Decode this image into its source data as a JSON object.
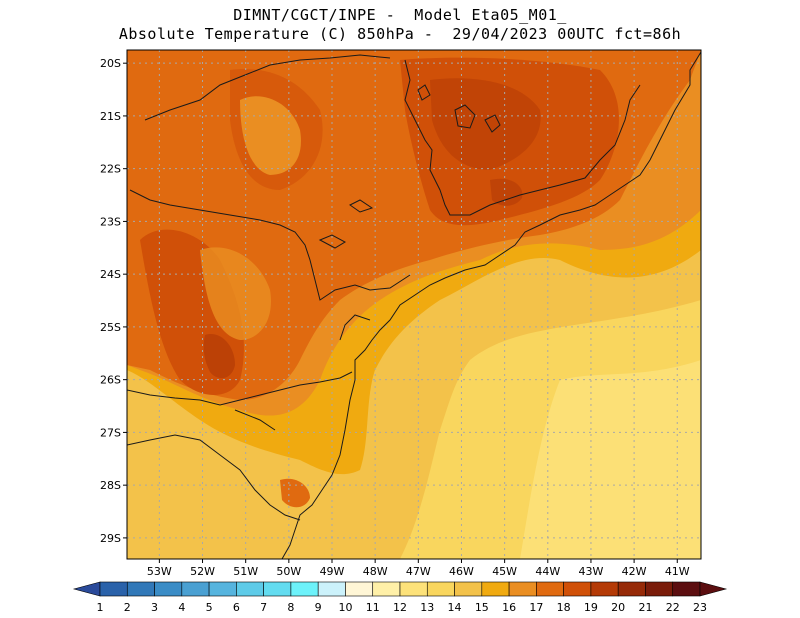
{
  "header": {
    "line1": "DIMNT/CGCT/INPE -  Model Eta05_M01_",
    "line2": "Absolute Temperature (C) 850hPa -  29/04/2023 00UTC fct=86h"
  },
  "map": {
    "lat_labels": [
      "20S",
      "21S",
      "22S",
      "23S",
      "24S",
      "25S",
      "26S",
      "27S",
      "28S",
      "29S"
    ],
    "lon_labels": [
      "53W",
      "52W",
      "51W",
      "50W",
      "49W",
      "48W",
      "47W",
      "46W",
      "45W",
      "44W",
      "43W",
      "42W",
      "41W"
    ],
    "extent": {
      "lon_min": -53.75,
      "lon_max": -40.45,
      "lat_max": -19.75,
      "lat_min": -29.4
    },
    "gridlines": "dotted"
  },
  "colorbar": {
    "labels": [
      "1",
      "2",
      "3",
      "4",
      "5",
      "6",
      "7",
      "8",
      "9",
      "10",
      "11",
      "12",
      "13",
      "14",
      "15",
      "16",
      "17",
      "18",
      "19",
      "20",
      "21",
      "22",
      "23"
    ],
    "colors": [
      "#2a4a9a",
      "#2a62aa",
      "#3178b8",
      "#3a8cc6",
      "#4aa0d2",
      "#56b4de",
      "#5ecbe8",
      "#63dcf0",
      "#6df2fa",
      "#ccf2fb",
      "#fff6d6",
      "#fff0a8",
      "#fde27a",
      "#f9d65e",
      "#f3c24a",
      "#f0aa10",
      "#ea8e22",
      "#e06a10",
      "#d05008",
      "#b43a06",
      "#962a08",
      "#7a1c0a",
      "#5c0e10"
    ]
  }
}
